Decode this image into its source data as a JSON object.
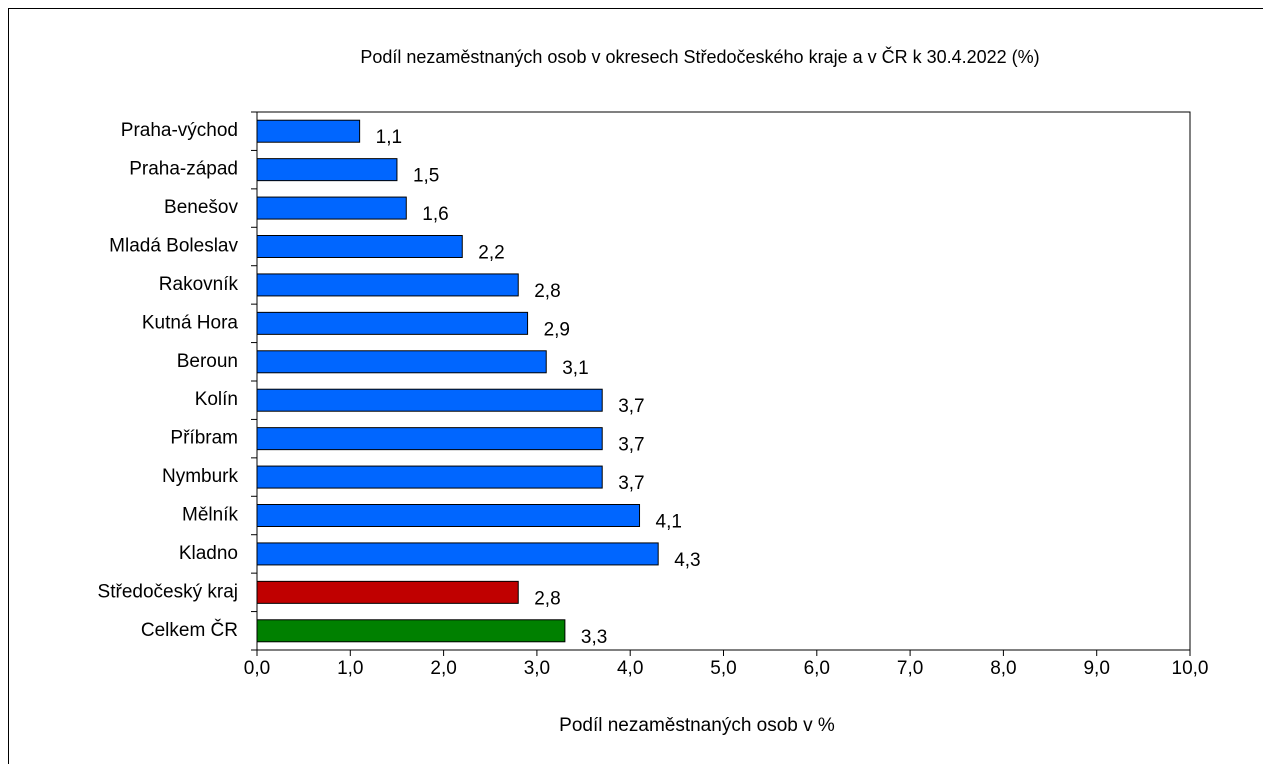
{
  "chart_data": {
    "type": "hbar",
    "title": "Podíl nezaměstnaných osob v okresech Středočeského kraje a v ČR k 30.4.2022 (%)",
    "x_label": "Podíl nezaměstnaných osob v %",
    "categories": [
      "Praha-východ",
      "Praha-západ",
      "Benešov",
      "Mladá Boleslav",
      "Rakovník",
      "Kutná Hora",
      "Beroun",
      "Kolín",
      "Příbram",
      "Nymburk",
      "Mělník",
      "Kladno",
      "Středočeský kraj",
      "Celkem ČR"
    ],
    "values": [
      1.1,
      1.5,
      1.6,
      2.2,
      2.8,
      2.9,
      3.1,
      3.7,
      3.7,
      3.7,
      4.1,
      4.3,
      2.8,
      3.3
    ],
    "value_labels": [
      "1,1",
      "1,5",
      "1,6",
      "2,2",
      "2,8",
      "2,9",
      "3,1",
      "3,7",
      "3,7",
      "3,7",
      "4,1",
      "4,3",
      "2,8",
      "3,3"
    ],
    "colors": [
      "#0066ff",
      "#0066ff",
      "#0066ff",
      "#0066ff",
      "#0066ff",
      "#0066ff",
      "#0066ff",
      "#0066ff",
      "#0066ff",
      "#0066ff",
      "#0066ff",
      "#0066ff",
      "#c00000",
      "#008000"
    ],
    "xlim": [
      0,
      10
    ],
    "xticks": [
      {
        "value": 0,
        "label": "0,0"
      },
      {
        "value": 1,
        "label": "1,0"
      },
      {
        "value": 2,
        "label": "2,0"
      },
      {
        "value": 3,
        "label": "3,0"
      },
      {
        "value": 4,
        "label": "4,0"
      },
      {
        "value": 5,
        "label": "5,0"
      },
      {
        "value": 6,
        "label": "6,0"
      },
      {
        "value": 7,
        "label": "7,0"
      },
      {
        "value": 8,
        "label": "8,0"
      },
      {
        "value": 9,
        "label": "9,0"
      },
      {
        "value": 10,
        "label": "10,0"
      }
    ],
    "grid": false
  }
}
